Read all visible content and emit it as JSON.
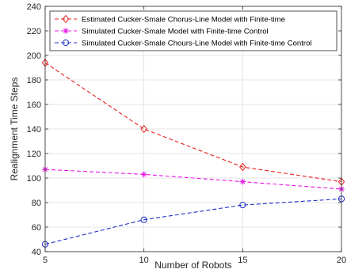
{
  "chart_data": {
    "type": "line",
    "x": [
      5,
      10,
      15,
      20
    ],
    "xlim": [
      5,
      20
    ],
    "ylim": [
      40,
      240
    ],
    "xticks": [
      5,
      10,
      15,
      20
    ],
    "yticks": [
      40,
      60,
      80,
      100,
      120,
      140,
      160,
      180,
      200,
      220,
      240
    ],
    "xlabel": "Number of Robots",
    "ylabel": "Realignment Time Steps",
    "title": "",
    "grid": true,
    "legend_position": "top-left",
    "series": [
      {
        "name": "Estimated Cucker-Smale Chorus-Line Model with Finite-time",
        "values": [
          194,
          140,
          109,
          97
        ],
        "color": "#e8211c",
        "line_style": "dashed",
        "marker": "diamond"
      },
      {
        "name": "Simulated Cucker-Smale Model with Finite-time Control",
        "values": [
          107,
          103,
          97,
          91
        ],
        "color": "#e617e6",
        "line_style": "dashed",
        "marker": "asterisk"
      },
      {
        "name": "Simulated Cucker-Smale Chours-Line Model with Finite-time Control",
        "values": [
          46,
          66,
          78,
          83
        ],
        "color": "#1f2fc4",
        "line_style": "dashed",
        "marker": "circle"
      }
    ]
  }
}
